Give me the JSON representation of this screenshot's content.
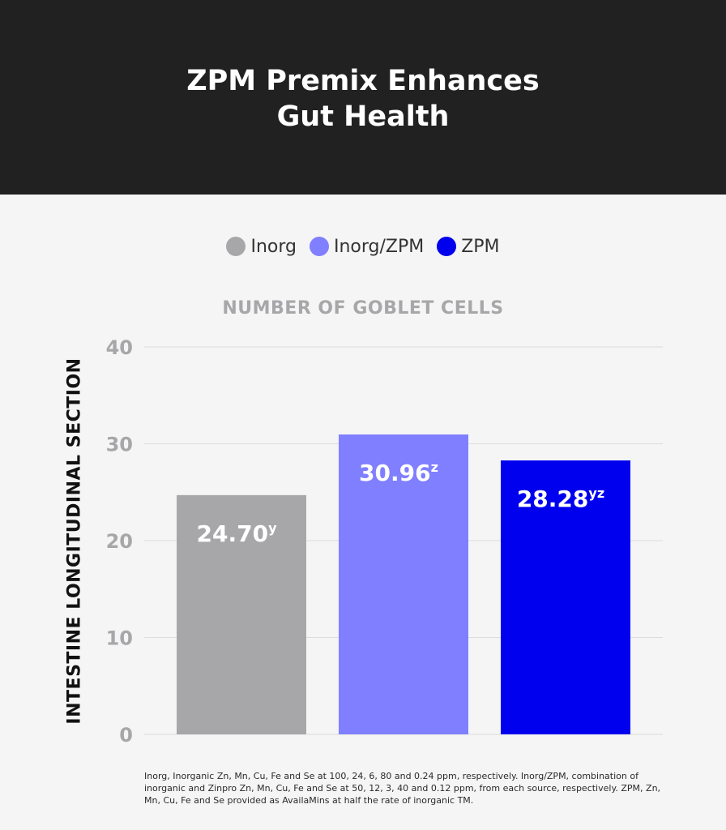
{
  "header": {
    "title_line1": "ZPM Premix Enhances",
    "title_line2": "Gut Health",
    "background": "#212121"
  },
  "legend": [
    {
      "label": "Inorg",
      "color": "#a7a7aa"
    },
    {
      "label": "Inorg/ZPM",
      "color": "#807fff"
    },
    {
      "label": "ZPM",
      "color": "#0000ee"
    }
  ],
  "chart_data": {
    "type": "bar",
    "title": "NUMBER OF GOBLET CELLS",
    "xlabel": "",
    "ylabel": "INTESTINE LONGITUDINAL SECTION",
    "ylim": [
      0,
      40
    ],
    "yticks": [
      "0",
      "10",
      "20",
      "30",
      "40"
    ],
    "grid": true,
    "legend_position": "top-center",
    "categories": [
      "Inorg",
      "Inorg/ZPM",
      "ZPM"
    ],
    "values": [
      24.7,
      30.96,
      28.28
    ],
    "labels": [
      {
        "value": "24.70",
        "sup": "y"
      },
      {
        "value": "30.96",
        "sup": "z"
      },
      {
        "value": "28.28",
        "sup": "yz"
      }
    ],
    "colors": [
      "#a7a7aa",
      "#807fff",
      "#0000ee"
    ]
  },
  "footnote": "Inorg, Inorganic Zn, Mn, Cu, Fe and Se at 100, 24, 6, 80 and 0.24 ppm, respectively.  Inorg/ZPM, combination of inorganic and Zinpro Zn, Mn, Cu, Fe and Se at 50, 12, 3, 40 and 0.12 ppm, from each source, respectively. ZPM, Zn, Mn, Cu, Fe and Se provided as AvailaMins at half the rate of inorganic TM."
}
